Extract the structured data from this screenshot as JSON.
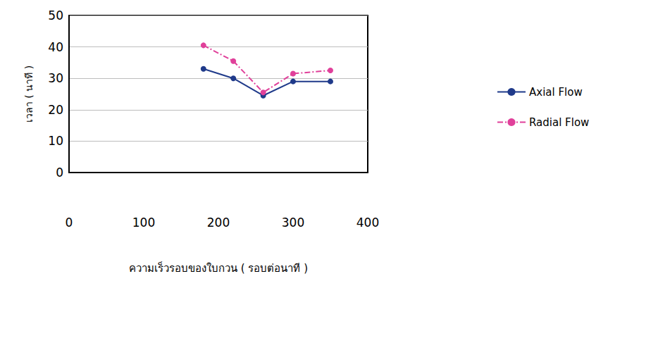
{
  "chart_data": {
    "type": "line",
    "x_label": "ความเร็วรอบของใบกวน ( รอบต่อนาที )",
    "y_label": "เวลา ( นาที )",
    "x": [
      180,
      220,
      260,
      300,
      350
    ],
    "series": [
      {
        "name": "Axial Flow",
        "color": "#1f3a8a",
        "marker": "circle",
        "line_style": "solid",
        "values": [
          33,
          30,
          24.5,
          29,
          29
        ]
      },
      {
        "name": "Radial Flow",
        "color": "#e0409a",
        "marker": "circle",
        "line_style": "dashdot",
        "values": [
          40.5,
          35.5,
          25.5,
          31.5,
          32.5
        ]
      }
    ],
    "xlim": [
      0,
      400
    ],
    "xticks": [
      0,
      100,
      200,
      300,
      400
    ],
    "ylim": [
      0,
      50
    ],
    "yticks": [
      0,
      10,
      20,
      30,
      40,
      50
    ],
    "grid": true,
    "legend": "right"
  }
}
